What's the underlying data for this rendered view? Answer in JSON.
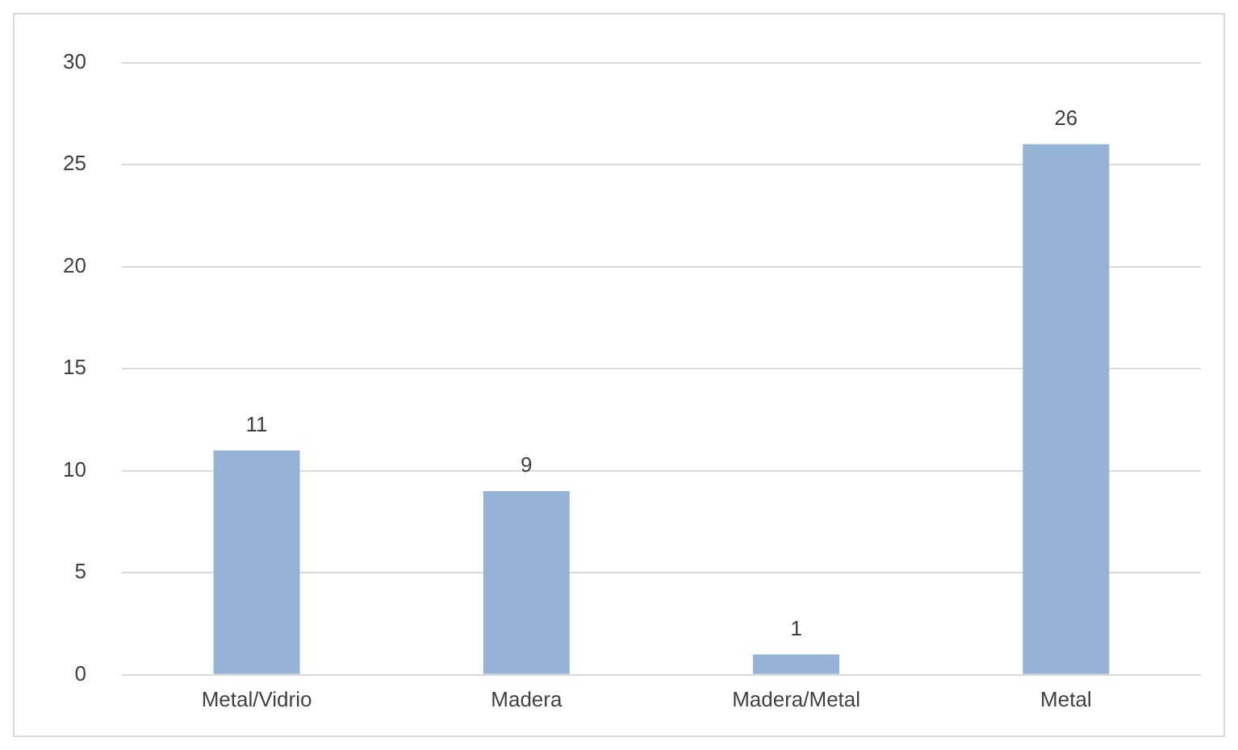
{
  "chart_data": {
    "type": "bar",
    "categories": [
      "Metal/Vidrio",
      "Madera",
      "Madera/Metal",
      "Metal"
    ],
    "values": [
      11,
      9,
      1,
      26
    ],
    "color": "#95b3d7",
    "ylim": [
      0,
      30
    ],
    "yticks": [
      0,
      5,
      10,
      15,
      20,
      25,
      30
    ],
    "grid": "y",
    "data_labels": true
  }
}
